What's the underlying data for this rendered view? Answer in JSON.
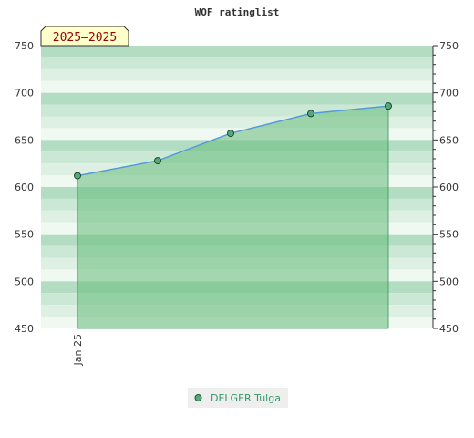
{
  "chart_data": {
    "type": "area",
    "title": "WOF ratinglist",
    "period_label": "2025—2025",
    "xlabel": "",
    "ylabel": "",
    "ylim": [
      450,
      750
    ],
    "yticks": [
      450,
      500,
      550,
      600,
      650,
      700,
      750
    ],
    "xtick_labels": [
      "Jan 25"
    ],
    "grid": true,
    "legend_position": "bottom-center",
    "series": [
      {
        "name": "DELGER Tulga",
        "values": [
          612,
          628,
          657,
          678,
          686
        ]
      }
    ],
    "colors": {
      "line": "#5599dd",
      "fill": "#66bb7a",
      "marker": "#55aa77",
      "band_dark": "#b3ddc2",
      "band_light": "#f0f8f2",
      "period_bg": "#ffffcc"
    }
  }
}
